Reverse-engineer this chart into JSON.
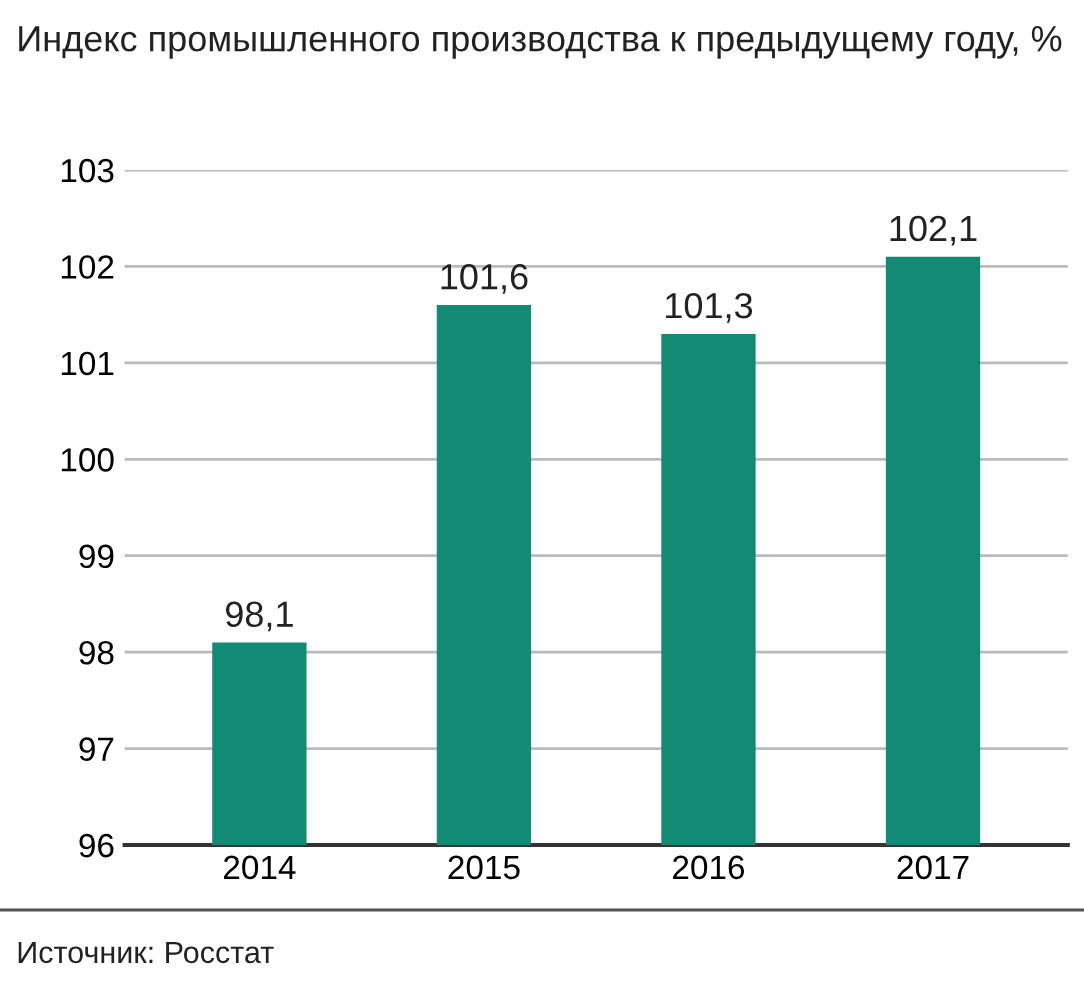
{
  "chart_data": {
    "type": "bar",
    "title": "Индекс промышленного производства к предыдущему году, %",
    "categories": [
      "2014",
      "2015",
      "2016",
      "2017"
    ],
    "values": [
      98.1,
      101.6,
      101.3,
      102.1
    ],
    "value_labels": [
      "98,1",
      "101,6",
      "101,3",
      "102,1"
    ],
    "color": "#138a73",
    "ylim": [
      96,
      103
    ],
    "yticks": [
      96,
      97,
      98,
      99,
      100,
      101,
      102,
      103
    ],
    "grid": "y",
    "annotations": [
      "Источник: Росстат"
    ]
  }
}
